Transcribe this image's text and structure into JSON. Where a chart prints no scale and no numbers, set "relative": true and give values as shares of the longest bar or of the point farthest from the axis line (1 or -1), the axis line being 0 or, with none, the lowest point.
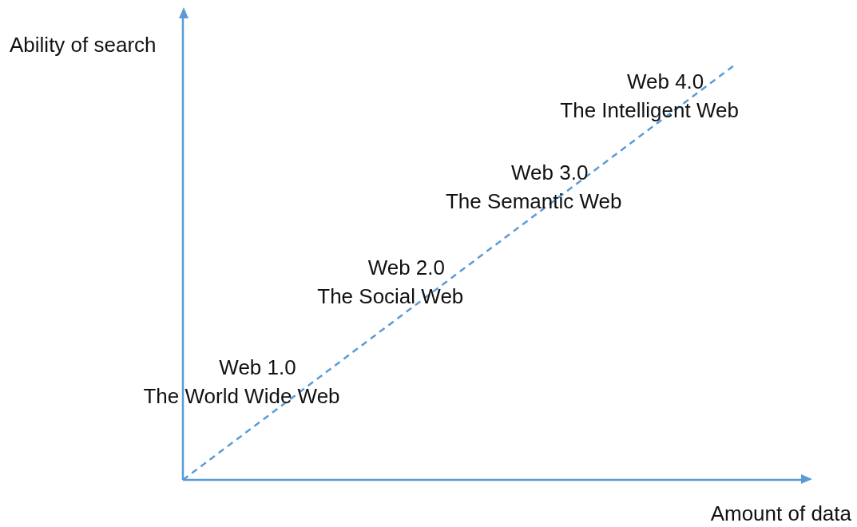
{
  "chart_data": {
    "type": "line",
    "relative": true,
    "xlabel": "Amount of data",
    "ylabel": "Ability of search",
    "categories": [
      null,
      null
    ],
    "series": [
      {
        "color": "#5b9bd5",
        "values": [
          0,
          1
        ]
      }
    ],
    "line_style": "dashed",
    "marker": "none",
    "legend": false,
    "annotations": [
      "Web 1.0",
      "The World Wide Web",
      "Web 2.0",
      "The Social Web",
      "Web 3.0",
      "The Semantic Web",
      "Web 4.0",
      "The Intelligent Web"
    ]
  }
}
